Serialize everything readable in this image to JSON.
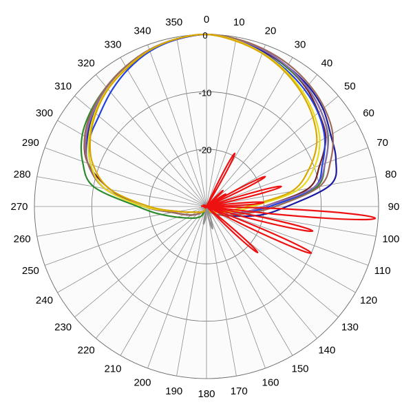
{
  "chart_data": {
    "type": "polar-line",
    "title": "",
    "angular_axis": {
      "ticks": [
        0,
        10,
        20,
        30,
        40,
        50,
        60,
        70,
        80,
        90,
        100,
        110,
        120,
        130,
        140,
        150,
        160,
        170,
        180,
        190,
        200,
        210,
        220,
        230,
        240,
        250,
        260,
        270,
        280,
        290,
        300,
        310,
        320,
        330,
        340,
        350
      ],
      "direction": "clockwise",
      "zero_at": "top"
    },
    "radial_axis": {
      "range": [
        -30,
        0
      ],
      "ticks": [
        0,
        -10,
        -20
      ],
      "tick_labels": [
        "0",
        "-10",
        "-20"
      ],
      "grid": true
    },
    "series": [
      {
        "color": "#6e1f1f",
        "points": [
          [
            0,
            0
          ],
          [
            10,
            -0.5
          ],
          [
            20,
            -1.2
          ],
          [
            30,
            -2
          ],
          [
            40,
            -3
          ],
          [
            50,
            -4.5
          ],
          [
            60,
            -6
          ],
          [
            70,
            -9
          ],
          [
            80,
            -12
          ],
          [
            90,
            -20
          ],
          [
            100,
            -24
          ],
          [
            120,
            -28
          ],
          [
            150,
            -29
          ],
          [
            180,
            -30
          ],
          [
            210,
            -29
          ],
          [
            240,
            -28
          ],
          [
            260,
            -25
          ],
          [
            270,
            -19
          ],
          [
            280,
            -13
          ],
          [
            290,
            -8
          ],
          [
            300,
            -5.5
          ],
          [
            310,
            -4
          ],
          [
            320,
            -3
          ],
          [
            330,
            -2
          ],
          [
            340,
            -1
          ],
          [
            350,
            -0.4
          ]
        ]
      },
      {
        "color": "#2b8a2b",
        "points": [
          [
            0,
            0
          ],
          [
            10,
            -0.5
          ],
          [
            20,
            -1
          ],
          [
            30,
            -2
          ],
          [
            40,
            -2.8
          ],
          [
            50,
            -4
          ],
          [
            60,
            -5.5
          ],
          [
            70,
            -8
          ],
          [
            80,
            -10.5
          ],
          [
            90,
            -18
          ],
          [
            100,
            -23
          ],
          [
            120,
            -27
          ],
          [
            150,
            -29
          ],
          [
            180,
            -30
          ],
          [
            210,
            -28
          ],
          [
            240,
            -26
          ],
          [
            260,
            -22
          ],
          [
            270,
            -18
          ],
          [
            280,
            -10
          ],
          [
            290,
            -7
          ],
          [
            300,
            -5
          ],
          [
            310,
            -3.8
          ],
          [
            320,
            -2.8
          ],
          [
            330,
            -1.9
          ],
          [
            340,
            -1
          ],
          [
            350,
            -0.3
          ]
        ]
      },
      {
        "color": "#1a1aa0",
        "points": [
          [
            0,
            0
          ],
          [
            10,
            -0.5
          ],
          [
            20,
            -1.1
          ],
          [
            30,
            -1.8
          ],
          [
            40,
            -2.5
          ],
          [
            50,
            -3.5
          ],
          [
            60,
            -5
          ],
          [
            70,
            -6
          ],
          [
            80,
            -8
          ],
          [
            90,
            -16
          ],
          [
            100,
            -21
          ],
          [
            120,
            -27
          ],
          [
            150,
            -29
          ],
          [
            180,
            -30
          ],
          [
            210,
            -29
          ],
          [
            240,
            -27
          ],
          [
            260,
            -24
          ],
          [
            270,
            -19
          ],
          [
            280,
            -12
          ],
          [
            290,
            -8
          ],
          [
            300,
            -6
          ],
          [
            310,
            -4.5
          ],
          [
            320,
            -3.2
          ],
          [
            330,
            -2.2
          ],
          [
            340,
            -1.1
          ],
          [
            350,
            -0.4
          ]
        ]
      },
      {
        "color": "#1f3fe0",
        "points": [
          [
            0,
            0
          ],
          [
            10,
            -0.6
          ],
          [
            20,
            -1.4
          ],
          [
            30,
            -2.4
          ],
          [
            40,
            -3.4
          ],
          [
            50,
            -4.6
          ],
          [
            60,
            -6.2
          ],
          [
            70,
            -8.5
          ],
          [
            80,
            -11
          ],
          [
            90,
            -19
          ],
          [
            100,
            -24
          ],
          [
            120,
            -28
          ],
          [
            150,
            -29
          ],
          [
            180,
            -30
          ],
          [
            210,
            -29
          ],
          [
            240,
            -27
          ],
          [
            260,
            -24
          ],
          [
            270,
            -19
          ],
          [
            280,
            -12
          ],
          [
            290,
            -8.5
          ],
          [
            300,
            -6.5
          ],
          [
            310,
            -5.5
          ],
          [
            320,
            -4
          ],
          [
            330,
            -2.5
          ],
          [
            340,
            -1.2
          ],
          [
            350,
            -0.4
          ]
        ]
      },
      {
        "color": "#8c6bb0",
        "points": [
          [
            0,
            0
          ],
          [
            10,
            -0.4
          ],
          [
            20,
            -1
          ],
          [
            30,
            -1.8
          ],
          [
            40,
            -2.8
          ],
          [
            50,
            -4
          ],
          [
            60,
            -5.6
          ],
          [
            70,
            -8
          ],
          [
            80,
            -11
          ],
          [
            90,
            -20
          ],
          [
            100,
            -24
          ],
          [
            120,
            -28
          ],
          [
            150,
            -29
          ],
          [
            180,
            -30
          ],
          [
            210,
            -29
          ],
          [
            240,
            -27
          ],
          [
            260,
            -24
          ],
          [
            270,
            -19
          ],
          [
            280,
            -12
          ],
          [
            290,
            -8
          ],
          [
            300,
            -5.8
          ],
          [
            310,
            -4.2
          ],
          [
            320,
            -3
          ],
          [
            330,
            -2
          ],
          [
            340,
            -1
          ],
          [
            350,
            -0.3
          ]
        ]
      },
      {
        "color": "#9c6a5a",
        "points": [
          [
            0,
            0
          ],
          [
            10,
            -0.3
          ],
          [
            20,
            -0.8
          ],
          [
            30,
            -1.4
          ],
          [
            40,
            -2.2
          ],
          [
            50,
            -3.2
          ],
          [
            60,
            -4.6
          ],
          [
            70,
            -7
          ],
          [
            80,
            -10
          ],
          [
            90,
            -18
          ],
          [
            100,
            -23
          ],
          [
            120,
            -27
          ],
          [
            150,
            -29
          ],
          [
            180,
            -30
          ],
          [
            210,
            -29
          ],
          [
            240,
            -27
          ],
          [
            260,
            -24
          ],
          [
            270,
            -19
          ],
          [
            280,
            -12
          ],
          [
            290,
            -8
          ],
          [
            300,
            -5.5
          ],
          [
            310,
            -4
          ],
          [
            320,
            -2.8
          ],
          [
            330,
            -1.8
          ],
          [
            340,
            -0.9
          ],
          [
            350,
            -0.3
          ]
        ]
      },
      {
        "color": "#e6dc1e",
        "points": [
          [
            0,
            0
          ],
          [
            10,
            -0.6
          ],
          [
            20,
            -1.5
          ],
          [
            30,
            -2.6
          ],
          [
            40,
            -3.9
          ],
          [
            50,
            -5.4
          ],
          [
            60,
            -7.2
          ],
          [
            70,
            -10
          ],
          [
            80,
            -14
          ],
          [
            90,
            -22
          ],
          [
            100,
            -25
          ],
          [
            120,
            -28
          ],
          [
            150,
            -29
          ],
          [
            180,
            -30
          ],
          [
            210,
            -29
          ],
          [
            240,
            -28
          ],
          [
            260,
            -25
          ],
          [
            270,
            -19
          ],
          [
            280,
            -12
          ],
          [
            290,
            -8.5
          ],
          [
            300,
            -6.3
          ],
          [
            310,
            -4.6
          ],
          [
            320,
            -3.2
          ],
          [
            330,
            -2.1
          ],
          [
            340,
            -1
          ],
          [
            350,
            -0.3
          ]
        ]
      },
      {
        "color": "#d8a800",
        "points": [
          [
            0,
            0
          ],
          [
            10,
            -0.7
          ],
          [
            20,
            -1.6
          ],
          [
            30,
            -2.8
          ],
          [
            40,
            -4.2
          ],
          [
            50,
            -5.8
          ],
          [
            60,
            -7.8
          ],
          [
            70,
            -11
          ],
          [
            80,
            -15
          ],
          [
            90,
            -23
          ],
          [
            100,
            -26
          ],
          [
            120,
            -28
          ],
          [
            150,
            -29
          ],
          [
            180,
            -30
          ],
          [
            210,
            -29
          ],
          [
            240,
            -28
          ],
          [
            260,
            -25
          ],
          [
            270,
            -20
          ],
          [
            280,
            -13
          ],
          [
            290,
            -9
          ],
          [
            300,
            -6.6
          ],
          [
            310,
            -4.8
          ],
          [
            320,
            -3.3
          ],
          [
            330,
            -2.2
          ],
          [
            340,
            -1
          ],
          [
            350,
            -0.3
          ]
        ]
      },
      {
        "color": "#909090",
        "points": [
          [
            0,
            -30
          ],
          [
            150,
            -30
          ],
          [
            160,
            -28
          ],
          [
            165,
            -26
          ],
          [
            170,
            -28
          ],
          [
            180,
            -30
          ],
          [
            185,
            -28
          ],
          [
            190,
            -27
          ],
          [
            200,
            -30
          ],
          [
            360,
            -30
          ]
        ]
      },
      {
        "color": "#ee1111",
        "lobes": [
          {
            "angle": 28,
            "peak": -19.5
          },
          {
            "angle": 46,
            "peak": -26
          },
          {
            "angle": 63,
            "peak": -18.5
          },
          {
            "angle": 75,
            "peak": -16.5
          },
          {
            "angle": 94,
            "peak": -0.5
          },
          {
            "angle": 103,
            "peak": -11
          },
          {
            "angle": 114,
            "peak": -10
          },
          {
            "angle": 132,
            "peak": -18
          },
          {
            "angle": 57,
            "peak": -26
          },
          {
            "angle": 86,
            "peak": -20
          }
        ]
      }
    ]
  }
}
